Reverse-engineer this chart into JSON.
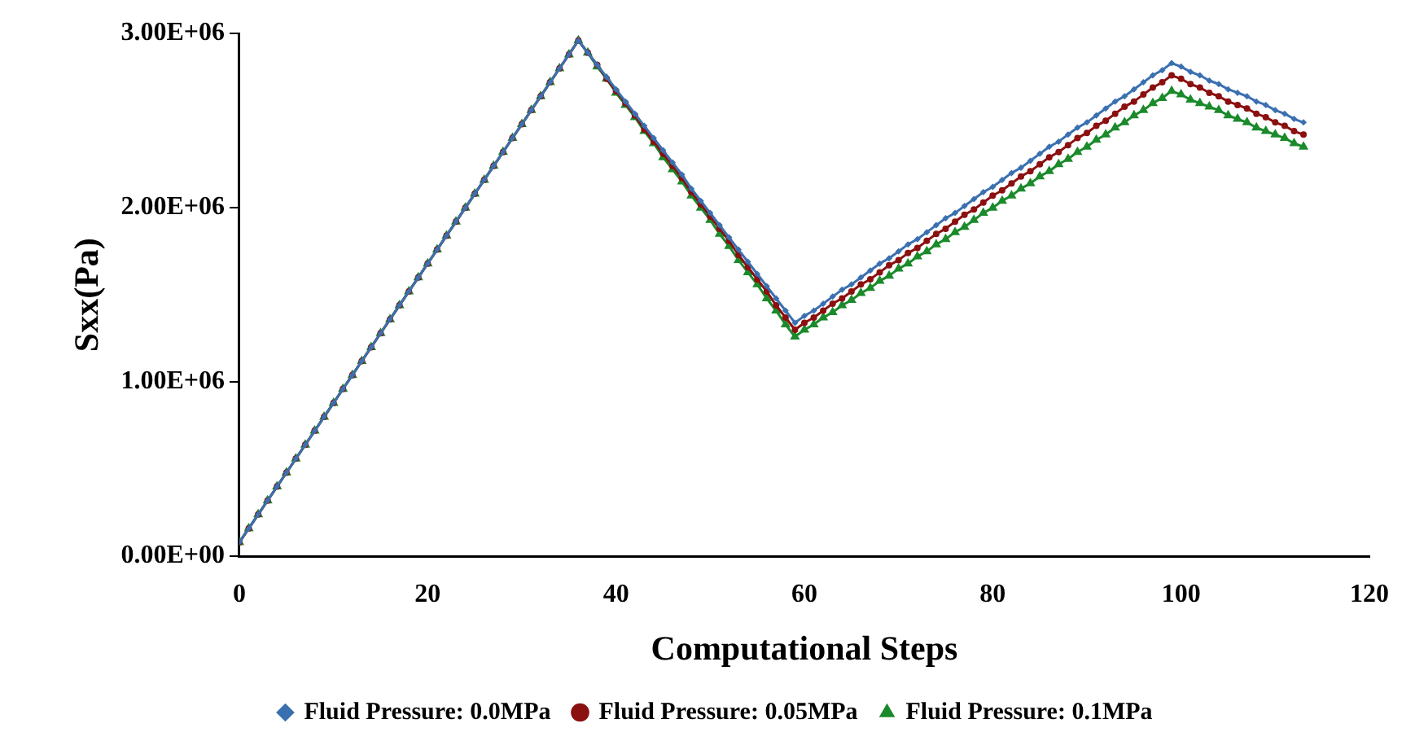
{
  "chart_data": {
    "type": "line",
    "xlabel": "Computational Steps",
    "ylabel": "Sxx(Pa)",
    "x": [
      0,
      1,
      2,
      3,
      4,
      5,
      6,
      7,
      8,
      9,
      10,
      11,
      12,
      13,
      14,
      15,
      16,
      17,
      18,
      19,
      20,
      21,
      22,
      23,
      24,
      25,
      26,
      27,
      28,
      29,
      30,
      31,
      32,
      33,
      34,
      35,
      36,
      37,
      38,
      39,
      40,
      41,
      42,
      43,
      44,
      45,
      46,
      47,
      48,
      49,
      50,
      51,
      52,
      53,
      54,
      55,
      56,
      57,
      58,
      59,
      60,
      61,
      62,
      63,
      64,
      65,
      66,
      67,
      68,
      69,
      70,
      71,
      72,
      73,
      74,
      75,
      76,
      77,
      78,
      79,
      80,
      81,
      82,
      83,
      84,
      85,
      86,
      87,
      88,
      89,
      90,
      91,
      92,
      93,
      94,
      95,
      96,
      97,
      98,
      99,
      100,
      101,
      102,
      103,
      104,
      105,
      106,
      107,
      108,
      109,
      110,
      111,
      112,
      113
    ],
    "xlim": [
      0,
      120
    ],
    "xticks": [
      0,
      20,
      40,
      60,
      80,
      100,
      120
    ],
    "ylim": [
      0,
      3000000
    ],
    "yticks": [
      {
        "value": 0,
        "label": "0.00E+00"
      },
      {
        "value": 1000000,
        "label": "1.00E+06"
      },
      {
        "value": 2000000,
        "label": "2.00E+06"
      },
      {
        "value": 3000000,
        "label": "3.00E+06"
      }
    ],
    "grid": false,
    "legend": "bottom",
    "line_style": "solid",
    "series": [
      {
        "name": "Fluid Pressure: 0.0MPa",
        "color": "#3a70b0",
        "marker": "diamond",
        "values": [
          80000,
          160000,
          240000,
          320000,
          400000,
          480000,
          560000,
          640000,
          720000,
          800000,
          880000,
          960000,
          1040000,
          1120000,
          1200000,
          1280000,
          1360000,
          1440000,
          1520000,
          1600000,
          1680000,
          1760000,
          1840000,
          1920000,
          2000000,
          2080000,
          2160000,
          2240000,
          2320000,
          2400000,
          2480000,
          2560000,
          2640000,
          2720000,
          2800000,
          2880000,
          2960000,
          2890000,
          2820000,
          2750000,
          2680000,
          2610000,
          2540000,
          2470000,
          2400000,
          2330000,
          2260000,
          2190000,
          2110000,
          2040000,
          1970000,
          1900000,
          1830000,
          1760000,
          1690000,
          1620000,
          1550000,
          1480000,
          1410000,
          1340000,
          1380000,
          1410000,
          1450000,
          1490000,
          1530000,
          1560000,
          1600000,
          1640000,
          1680000,
          1710000,
          1750000,
          1790000,
          1820000,
          1860000,
          1900000,
          1940000,
          1970000,
          2010000,
          2050000,
          2090000,
          2120000,
          2160000,
          2200000,
          2230000,
          2270000,
          2310000,
          2350000,
          2380000,
          2420000,
          2460000,
          2490000,
          2530000,
          2570000,
          2610000,
          2640000,
          2680000,
          2720000,
          2760000,
          2790000,
          2830000,
          2810000,
          2780000,
          2760000,
          2730000,
          2710000,
          2680000,
          2660000,
          2640000,
          2610000,
          2590000,
          2560000,
          2540000,
          2510000,
          2490000
        ]
      },
      {
        "name": "Fluid Pressure: 0.05MPa",
        "color": "#8b1010",
        "marker": "circle",
        "values": [
          80000,
          160000,
          240000,
          320000,
          400000,
          480000,
          560000,
          640000,
          720000,
          800000,
          880000,
          960000,
          1040000,
          1120000,
          1200000,
          1280000,
          1360000,
          1440000,
          1520000,
          1600000,
          1680000,
          1760000,
          1840000,
          1920000,
          2000000,
          2080000,
          2160000,
          2240000,
          2320000,
          2400000,
          2480000,
          2560000,
          2640000,
          2720000,
          2800000,
          2880000,
          2960000,
          2890000,
          2820000,
          2740000,
          2670000,
          2600000,
          2530000,
          2450000,
          2380000,
          2310000,
          2240000,
          2170000,
          2090000,
          2020000,
          1950000,
          1880000,
          1810000,
          1730000,
          1660000,
          1590000,
          1520000,
          1440000,
          1370000,
          1300000,
          1340000,
          1370000,
          1410000,
          1450000,
          1480000,
          1520000,
          1560000,
          1590000,
          1630000,
          1670000,
          1700000,
          1740000,
          1770000,
          1810000,
          1850000,
          1880000,
          1920000,
          1960000,
          1990000,
          2030000,
          2070000,
          2100000,
          2140000,
          2180000,
          2210000,
          2250000,
          2290000,
          2320000,
          2360000,
          2400000,
          2430000,
          2470000,
          2500000,
          2540000,
          2580000,
          2610000,
          2650000,
          2690000,
          2720000,
          2760000,
          2740000,
          2710000,
          2690000,
          2660000,
          2640000,
          2610000,
          2590000,
          2570000,
          2540000,
          2520000,
          2490000,
          2470000,
          2440000,
          2420000
        ]
      },
      {
        "name": "Fluid Pressure: 0.1MPa",
        "color": "#1a8a2a",
        "marker": "triangle",
        "values": [
          80000,
          160000,
          240000,
          320000,
          400000,
          480000,
          560000,
          640000,
          720000,
          800000,
          880000,
          960000,
          1040000,
          1120000,
          1200000,
          1280000,
          1360000,
          1440000,
          1520000,
          1600000,
          1680000,
          1760000,
          1840000,
          1920000,
          2000000,
          2080000,
          2160000,
          2240000,
          2320000,
          2400000,
          2480000,
          2560000,
          2640000,
          2720000,
          2800000,
          2880000,
          2960000,
          2890000,
          2810000,
          2740000,
          2660000,
          2590000,
          2520000,
          2440000,
          2370000,
          2290000,
          2220000,
          2150000,
          2070000,
          2000000,
          1930000,
          1850000,
          1780000,
          1700000,
          1630000,
          1560000,
          1480000,
          1410000,
          1330000,
          1260000,
          1300000,
          1330000,
          1370000,
          1400000,
          1440000,
          1470000,
          1510000,
          1540000,
          1580000,
          1610000,
          1650000,
          1680000,
          1720000,
          1750000,
          1790000,
          1820000,
          1860000,
          1890000,
          1930000,
          1970000,
          2000000,
          2040000,
          2070000,
          2110000,
          2140000,
          2180000,
          2210000,
          2250000,
          2280000,
          2320000,
          2350000,
          2390000,
          2420000,
          2460000,
          2490000,
          2530000,
          2560000,
          2600000,
          2630000,
          2670000,
          2650000,
          2620000,
          2600000,
          2580000,
          2560000,
          2530000,
          2510000,
          2490000,
          2460000,
          2440000,
          2420000,
          2400000,
          2370000,
          2350000
        ]
      }
    ]
  }
}
